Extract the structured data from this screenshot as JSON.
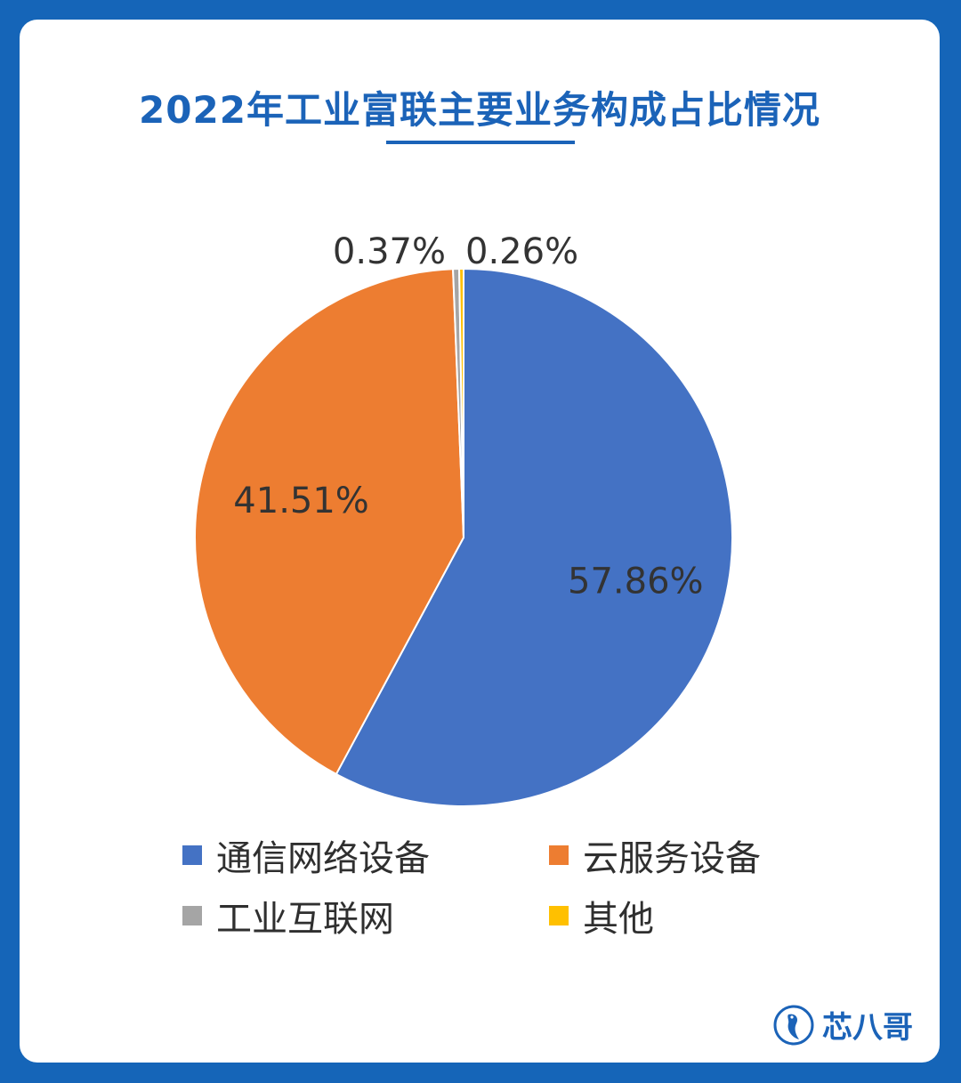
{
  "chart_data": {
    "type": "pie",
    "title": "2022年工业富联主要业务构成占比情况",
    "categories": [
      "通信网络设备",
      "云服务设备",
      "工业互联网",
      "其他"
    ],
    "values": [
      57.86,
      41.51,
      0.37,
      0.26
    ],
    "data_labels": [
      "57.86%",
      "41.51%",
      "0.37%",
      "0.26%"
    ],
    "colors": [
      "#4472c4",
      "#ed7d31",
      "#a5a5a5",
      "#ffc000"
    ],
    "legend": "bottom"
  },
  "brand": {
    "name": "芯八哥",
    "icon": "bird-logo-icon"
  }
}
